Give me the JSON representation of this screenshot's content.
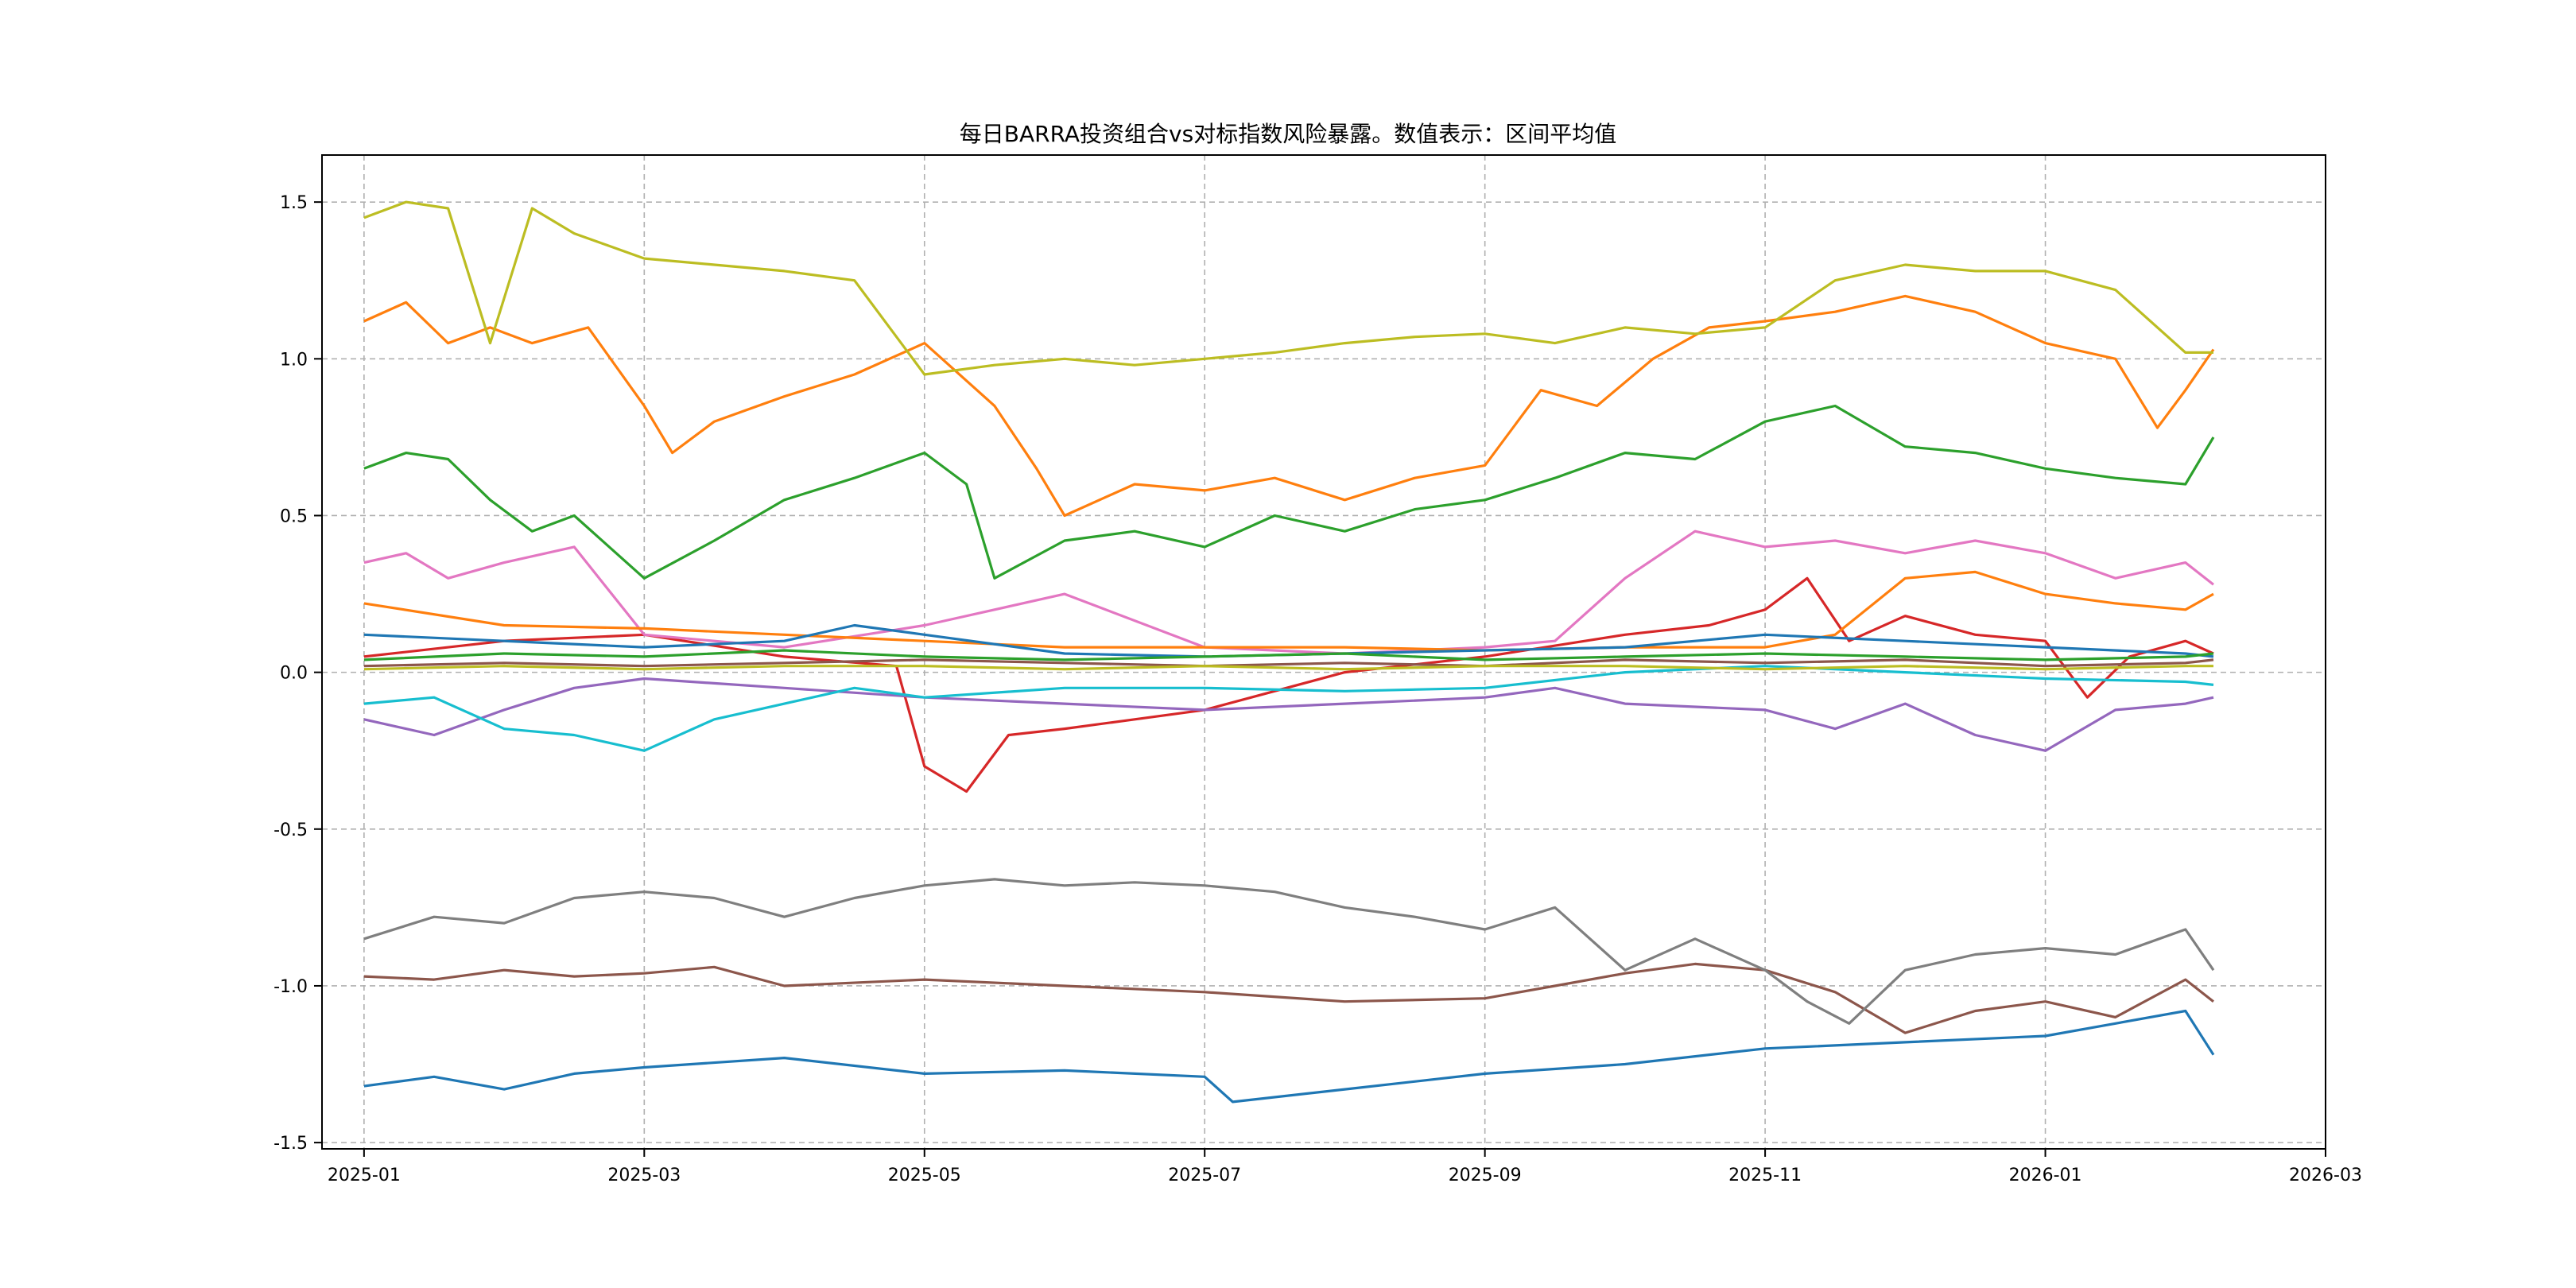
{
  "chart_data": {
    "type": "line",
    "title": "每日BARRA投资组合vs对标指数风险暴露。数值表示：区间平均值",
    "xlabel": "",
    "ylabel": "",
    "x_ticks": [
      "2025-01",
      "2025-03",
      "2025-05",
      "2025-07",
      "2025-09",
      "2025-11",
      "2026-01",
      "2026-03"
    ],
    "x_tick_months": [
      0,
      2,
      4,
      6,
      8,
      10,
      12,
      14
    ],
    "x_range_months": [
      -0.3,
      14.0
    ],
    "y_ticks": [
      "1.5",
      "1.0",
      "0.5",
      "0.0",
      "-0.5",
      "-1.0",
      "-1.5"
    ],
    "y_tick_values": [
      1.5,
      1.0,
      0.5,
      0.0,
      -0.5,
      -1.0,
      -1.5
    ],
    "ylim": [
      -1.52,
      1.65
    ],
    "grid": true,
    "legend": "none",
    "series": [
      {
        "name": "blue",
        "color": "#1f77b4",
        "x": [
          0,
          0.5,
          1,
          1.5,
          2,
          3,
          4,
          5,
          6,
          6.2,
          7,
          8,
          9,
          10,
          11,
          12,
          12.5,
          13,
          13.2
        ],
        "values": [
          -1.32,
          -1.29,
          -1.33,
          -1.28,
          -1.26,
          -1.23,
          -1.28,
          -1.27,
          -1.29,
          -1.37,
          -1.33,
          -1.28,
          -1.25,
          -1.2,
          -1.18,
          -1.16,
          -1.12,
          -1.08,
          -1.22
        ]
      },
      {
        "name": "orange",
        "color": "#ff7f0e",
        "x": [
          0,
          0.3,
          0.6,
          0.9,
          1.2,
          1.6,
          2.0,
          2.2,
          2.5,
          3.0,
          3.5,
          4.0,
          4.5,
          4.8,
          5.0,
          5.5,
          6.0,
          6.5,
          7.0,
          7.5,
          8.0,
          8.4,
          8.8,
          9.2,
          9.6,
          10.0,
          10.5,
          11.0,
          11.5,
          12.0,
          12.5,
          12.8,
          13.0,
          13.2
        ],
        "values": [
          1.12,
          1.18,
          1.05,
          1.1,
          1.05,
          1.1,
          0.85,
          0.7,
          0.8,
          0.88,
          0.95,
          1.05,
          0.85,
          0.65,
          0.5,
          0.6,
          0.58,
          0.62,
          0.55,
          0.62,
          0.66,
          0.9,
          0.85,
          1.0,
          1.1,
          1.12,
          1.15,
          1.2,
          1.15,
          1.05,
          1.0,
          0.78,
          0.9,
          1.03
        ]
      },
      {
        "name": "green",
        "color": "#2ca02c",
        "x": [
          0,
          0.3,
          0.6,
          0.9,
          1.2,
          1.5,
          2.0,
          2.5,
          3.0,
          3.5,
          4.0,
          4.3,
          4.5,
          5.0,
          5.5,
          6.0,
          6.5,
          7.0,
          7.5,
          8.0,
          8.5,
          9.0,
          9.5,
          10.0,
          10.5,
          11.0,
          11.5,
          12.0,
          12.5,
          13.0,
          13.2
        ],
        "values": [
          0.65,
          0.7,
          0.68,
          0.55,
          0.45,
          0.5,
          0.3,
          0.42,
          0.55,
          0.62,
          0.7,
          0.6,
          0.3,
          0.42,
          0.45,
          0.4,
          0.5,
          0.45,
          0.52,
          0.55,
          0.62,
          0.7,
          0.68,
          0.8,
          0.85,
          0.72,
          0.7,
          0.65,
          0.62,
          0.6,
          0.75
        ]
      },
      {
        "name": "red",
        "color": "#d62728",
        "x": [
          0,
          1,
          2,
          3,
          3.8,
          4.0,
          4.3,
          4.6,
          5.0,
          5.5,
          6.0,
          7.0,
          8.0,
          9.0,
          9.6,
          10.0,
          10.3,
          10.6,
          11.0,
          11.5,
          12.0,
          12.3,
          12.6,
          13.0,
          13.2
        ],
        "values": [
          0.05,
          0.1,
          0.12,
          0.05,
          0.02,
          -0.3,
          -0.38,
          -0.2,
          -0.18,
          -0.15,
          -0.12,
          0.0,
          0.05,
          0.12,
          0.15,
          0.2,
          0.3,
          0.1,
          0.18,
          0.12,
          0.1,
          -0.08,
          0.05,
          0.1,
          0.06
        ]
      },
      {
        "name": "purple",
        "color": "#9467bd",
        "x": [
          0,
          0.5,
          1,
          1.5,
          2,
          3,
          4,
          5,
          6,
          7,
          8,
          8.5,
          9,
          10,
          10.5,
          11,
          11.5,
          12,
          12.5,
          13,
          13.2
        ],
        "values": [
          -0.15,
          -0.2,
          -0.12,
          -0.05,
          -0.02,
          -0.05,
          -0.08,
          -0.1,
          -0.12,
          -0.1,
          -0.08,
          -0.05,
          -0.1,
          -0.12,
          -0.18,
          -0.1,
          -0.2,
          -0.25,
          -0.12,
          -0.1,
          -0.08
        ]
      },
      {
        "name": "brown",
        "color": "#8c564b",
        "x": [
          0,
          0.5,
          1,
          1.5,
          2,
          2.5,
          3,
          4,
          5,
          6,
          7,
          8,
          8.5,
          9,
          9.5,
          10,
          10.5,
          11,
          11.5,
          12,
          12.5,
          13,
          13.2
        ],
        "values": [
          -0.97,
          -0.98,
          -0.95,
          -0.97,
          -0.96,
          -0.94,
          -1.0,
          -0.98,
          -1.0,
          -1.02,
          -1.05,
          -1.04,
          -1.0,
          -0.96,
          -0.93,
          -0.95,
          -1.02,
          -1.15,
          -1.08,
          -1.05,
          -1.1,
          -0.98,
          -1.05
        ]
      },
      {
        "name": "pink",
        "color": "#e377c2",
        "x": [
          0,
          0.3,
          0.6,
          1.0,
          1.5,
          2.0,
          3.0,
          4.0,
          5.0,
          6.0,
          7.0,
          8.0,
          8.5,
          9.0,
          9.5,
          10.0,
          10.5,
          11.0,
          11.5,
          12.0,
          12.5,
          13.0,
          13.2
        ],
        "values": [
          0.35,
          0.38,
          0.3,
          0.35,
          0.4,
          0.12,
          0.08,
          0.15,
          0.25,
          0.08,
          0.06,
          0.08,
          0.1,
          0.3,
          0.45,
          0.4,
          0.42,
          0.38,
          0.42,
          0.38,
          0.3,
          0.35,
          0.28
        ]
      },
      {
        "name": "gray",
        "color": "#7f7f7f",
        "x": [
          0,
          0.5,
          1,
          1.5,
          2,
          2.5,
          3,
          3.5,
          4,
          4.5,
          5,
          5.5,
          6,
          6.5,
          7,
          7.5,
          8,
          8.5,
          9,
          9.5,
          10,
          10.3,
          10.6,
          11,
          11.5,
          12,
          12.5,
          13,
          13.2
        ],
        "values": [
          -0.85,
          -0.78,
          -0.8,
          -0.72,
          -0.7,
          -0.72,
          -0.78,
          -0.72,
          -0.68,
          -0.66,
          -0.68,
          -0.67,
          -0.68,
          -0.7,
          -0.75,
          -0.78,
          -0.82,
          -0.75,
          -0.95,
          -0.85,
          -0.95,
          -1.05,
          -1.12,
          -0.95,
          -0.9,
          -0.88,
          -0.9,
          -0.82,
          -0.95
        ]
      },
      {
        "name": "olive",
        "color": "#bcbd22",
        "x": [
          0,
          0.3,
          0.6,
          0.9,
          1.2,
          1.5,
          2.0,
          2.5,
          3.0,
          3.5,
          4.0,
          4.5,
          5.0,
          5.5,
          6.0,
          6.5,
          7.0,
          7.5,
          8.0,
          8.5,
          9.0,
          9.5,
          10.0,
          10.5,
          11.0,
          11.5,
          12.0,
          12.5,
          13.0,
          13.2
        ],
        "values": [
          1.45,
          1.5,
          1.48,
          1.05,
          1.48,
          1.4,
          1.32,
          1.3,
          1.28,
          1.25,
          0.95,
          0.98,
          1.0,
          0.98,
          1.0,
          1.02,
          1.05,
          1.07,
          1.08,
          1.05,
          1.1,
          1.08,
          1.1,
          1.25,
          1.3,
          1.28,
          1.28,
          1.22,
          1.02,
          1.02
        ]
      },
      {
        "name": "cyan",
        "color": "#17becf",
        "x": [
          0,
          0.5,
          1,
          1.5,
          2,
          2.5,
          3,
          3.5,
          4,
          5,
          6,
          7,
          8,
          9,
          10,
          11,
          12,
          13,
          13.2
        ],
        "values": [
          -0.1,
          -0.08,
          -0.18,
          -0.2,
          -0.25,
          -0.15,
          -0.1,
          -0.05,
          -0.08,
          -0.05,
          -0.05,
          -0.06,
          -0.05,
          0.0,
          0.02,
          0.0,
          -0.02,
          -0.03,
          -0.04
        ]
      },
      {
        "name": "orange-2",
        "color": "#ff7f0e",
        "x": [
          0,
          1,
          2,
          3,
          4,
          5,
          6,
          7,
          8,
          9,
          10,
          10.5,
          11,
          11.5,
          12,
          12.5,
          13,
          13.2
        ],
        "values": [
          0.22,
          0.15,
          0.14,
          0.12,
          0.1,
          0.08,
          0.08,
          0.08,
          0.07,
          0.08,
          0.08,
          0.12,
          0.3,
          0.32,
          0.25,
          0.22,
          0.2,
          0.25
        ]
      },
      {
        "name": "blue-2",
        "color": "#1f77b4",
        "x": [
          0,
          1,
          2,
          3,
          3.5,
          4,
          5,
          6,
          7,
          8,
          9,
          10,
          11,
          12,
          13,
          13.2
        ],
        "values": [
          0.12,
          0.1,
          0.08,
          0.1,
          0.15,
          0.12,
          0.06,
          0.05,
          0.06,
          0.07,
          0.08,
          0.12,
          0.1,
          0.08,
          0.06,
          0.05
        ]
      },
      {
        "name": "green-2",
        "color": "#2ca02c",
        "x": [
          0,
          1,
          2,
          3,
          4,
          5,
          6,
          7,
          8,
          9,
          10,
          11,
          12,
          13,
          13.2
        ],
        "values": [
          0.04,
          0.06,
          0.05,
          0.07,
          0.05,
          0.04,
          0.05,
          0.06,
          0.04,
          0.05,
          0.06,
          0.05,
          0.04,
          0.05,
          0.06
        ]
      },
      {
        "name": "brown-2",
        "color": "#8c564b",
        "x": [
          0,
          1,
          2,
          3,
          4,
          5,
          6,
          7,
          8,
          9,
          10,
          11,
          12,
          13,
          13.2
        ],
        "values": [
          0.02,
          0.03,
          0.02,
          0.03,
          0.04,
          0.03,
          0.02,
          0.03,
          0.02,
          0.04,
          0.03,
          0.04,
          0.02,
          0.03,
          0.04
        ]
      },
      {
        "name": "olive-2",
        "color": "#bcbd22",
        "x": [
          0,
          1,
          2,
          3,
          4,
          5,
          6,
          7,
          8,
          9,
          10,
          11,
          12,
          13,
          13.2
        ],
        "values": [
          0.01,
          0.02,
          0.01,
          0.02,
          0.02,
          0.01,
          0.02,
          0.01,
          0.02,
          0.02,
          0.01,
          0.02,
          0.01,
          0.02,
          0.02
        ]
      }
    ]
  }
}
